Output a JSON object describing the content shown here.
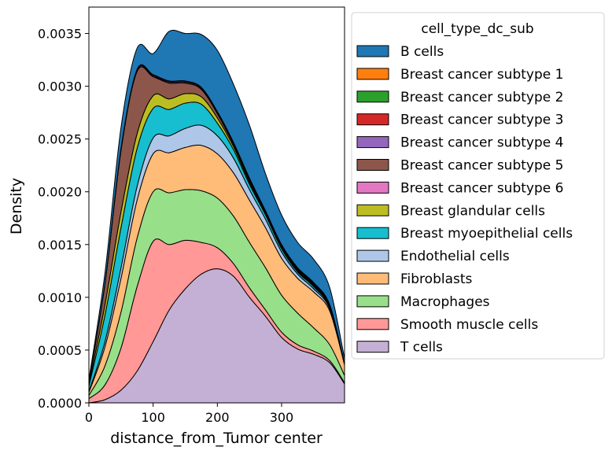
{
  "chart_data": {
    "type": "area",
    "stacked": true,
    "xlabel": "distance_from_Tumor center",
    "ylabel": "Density",
    "xlim": [
      0,
      398
    ],
    "ylim": [
      0,
      0.00375
    ],
    "xticks": [
      0,
      100,
      200,
      300
    ],
    "yticks": [
      0,
      0.0005,
      0.001,
      0.0015,
      0.002,
      0.0025,
      0.003,
      0.0035
    ],
    "ytick_labels": [
      "0.0000",
      "0.0005",
      "0.0010",
      "0.0015",
      "0.0020",
      "0.0025",
      "0.0030",
      "0.0035"
    ],
    "xtick_labels": [
      "0",
      "100",
      "200",
      "300"
    ],
    "legend": {
      "title": "cell_type_dc_sub",
      "position": "right"
    },
    "x": [
      0,
      25,
      50,
      75,
      100,
      125,
      150,
      175,
      200,
      225,
      250,
      275,
      300,
      325,
      350,
      375,
      398
    ],
    "series": [
      {
        "name": "T cells",
        "color": "#c5b0d5",
        "values": [
          0.0,
          3e-05,
          0.00012,
          0.0003,
          0.00058,
          0.00088,
          0.00108,
          0.00122,
          0.00127,
          0.0012,
          0.001,
          0.00082,
          0.00062,
          0.00051,
          0.00046,
          0.00038,
          0.00018
        ]
      },
      {
        "name": "Smooth muscle cells",
        "color": "#ff9896",
        "values": [
          4e-05,
          0.00014,
          0.0004,
          0.0008,
          0.00095,
          0.00062,
          0.00046,
          0.0003,
          0.0002,
          0.00012,
          9e-05,
          6e-05,
          5e-05,
          4e-05,
          3e-05,
          2e-05,
          1e-05
        ]
      },
      {
        "name": "Macrophages",
        "color": "#98df8a",
        "values": [
          3e-05,
          0.00018,
          0.00034,
          0.00046,
          0.00047,
          0.00049,
          0.00048,
          0.00049,
          0.00047,
          0.00045,
          0.00043,
          0.0004,
          0.00035,
          0.0003,
          0.00022,
          0.00015,
          7e-05
        ]
      },
      {
        "name": "Fibroblasts",
        "color": "#ffbb78",
        "values": [
          3e-05,
          0.00018,
          0.00032,
          0.00036,
          0.00036,
          0.00038,
          0.0004,
          0.00043,
          0.00042,
          0.00041,
          0.0004,
          0.00038,
          0.00035,
          0.00033,
          0.00034,
          0.00032,
          0.0001
        ]
      },
      {
        "name": "Endothelial cells",
        "color": "#aec7e8",
        "values": [
          1e-05,
          5e-05,
          0.0001,
          0.00013,
          0.00015,
          0.00016,
          0.00018,
          0.00019,
          0.00017,
          0.00014,
          0.0001,
          8e-05,
          6e-05,
          4e-05,
          3e-05,
          2e-05,
          1e-05
        ]
      },
      {
        "name": "Breast myoepithelial cells",
        "color": "#17becf",
        "values": [
          5e-05,
          0.00025,
          0.00038,
          0.00036,
          0.00028,
          0.00025,
          0.00024,
          0.0002,
          0.00012,
          8e-05,
          5e-05,
          4e-05,
          3e-05,
          2e-05,
          2e-05,
          1e-05,
          0.0
        ]
      },
      {
        "name": "Breast glandular cells",
        "color": "#bcbd22",
        "values": [
          2e-05,
          0.0001,
          0.00015,
          0.00014,
          0.00012,
          0.0001,
          9e-05,
          7e-05,
          5e-05,
          3e-05,
          2e-05,
          1e-05,
          1e-05,
          1e-05,
          1e-05,
          0.0,
          0.0
        ]
      },
      {
        "name": "Breast cancer subtype 6",
        "color": "#e377c2",
        "values": [
          0.0,
          0.0,
          0.0,
          0.0,
          0.0,
          0.0,
          0.0,
          0.0,
          0.0,
          0.0,
          0.0,
          0.0,
          0.0,
          0.0,
          0.0,
          0.0,
          0.0
        ]
      },
      {
        "name": "Breast cancer subtype 5",
        "color": "#8c564b",
        "values": [
          2e-05,
          0.0002,
          0.00058,
          0.00059,
          0.00018,
          0.00015,
          0.0001,
          7e-05,
          4e-05,
          2e-05,
          2e-05,
          1e-05,
          1e-05,
          1e-05,
          1e-05,
          1e-05,
          0.0
        ]
      },
      {
        "name": "Breast cancer subtype 4",
        "color": "#9467bd",
        "values": [
          0.0,
          0.0,
          1e-05,
          1e-05,
          1e-05,
          1e-05,
          1e-05,
          1e-05,
          1e-05,
          1e-05,
          1e-05,
          1e-05,
          1e-05,
          1e-05,
          1e-05,
          1e-05,
          0.0
        ]
      },
      {
        "name": "Breast cancer subtype 3",
        "color": "#d62728",
        "values": [
          0.0,
          0.0,
          1e-05,
          1e-05,
          1e-05,
          1e-05,
          1e-05,
          1e-05,
          1e-05,
          1e-05,
          1e-05,
          1e-05,
          1e-05,
          1e-05,
          1e-05,
          1e-05,
          0.0
        ]
      },
      {
        "name": "Breast cancer subtype 2",
        "color": "#2ca02c",
        "values": [
          0.0,
          0.0,
          0.0,
          0.0,
          0.0,
          0.0,
          0.0,
          0.0,
          0.0,
          0.0,
          0.0,
          0.0,
          0.0,
          0.0,
          0.0,
          0.0,
          0.0
        ]
      },
      {
        "name": "Breast cancer subtype 1",
        "color": "#ff7f0e",
        "values": [
          0.0,
          0.0,
          0.0,
          0.0,
          0.0,
          0.0,
          0.0,
          0.0,
          0.0,
          0.0,
          0.0,
          0.0,
          0.0,
          0.0,
          0.0,
          0.0,
          0.0
        ]
      },
      {
        "name": "B cells",
        "color": "#1f77b4",
        "values": [
          2e-05,
          0.0001,
          0.0002,
          0.0002,
          0.0002,
          0.00047,
          0.00045,
          0.0005,
          0.00058,
          0.00055,
          0.0005,
          0.00035,
          0.00028,
          0.00024,
          0.00022,
          0.00016,
          5e-05
        ]
      }
    ],
    "legend_order": [
      "B cells",
      "Breast cancer subtype 1",
      "Breast cancer subtype 2",
      "Breast cancer subtype 3",
      "Breast cancer subtype 4",
      "Breast cancer subtype 5",
      "Breast cancer subtype 6",
      "Breast glandular cells",
      "Breast myoepithelial cells",
      "Endothelial cells",
      "Fibroblasts",
      "Macrophages",
      "Smooth muscle cells",
      "T cells"
    ]
  }
}
